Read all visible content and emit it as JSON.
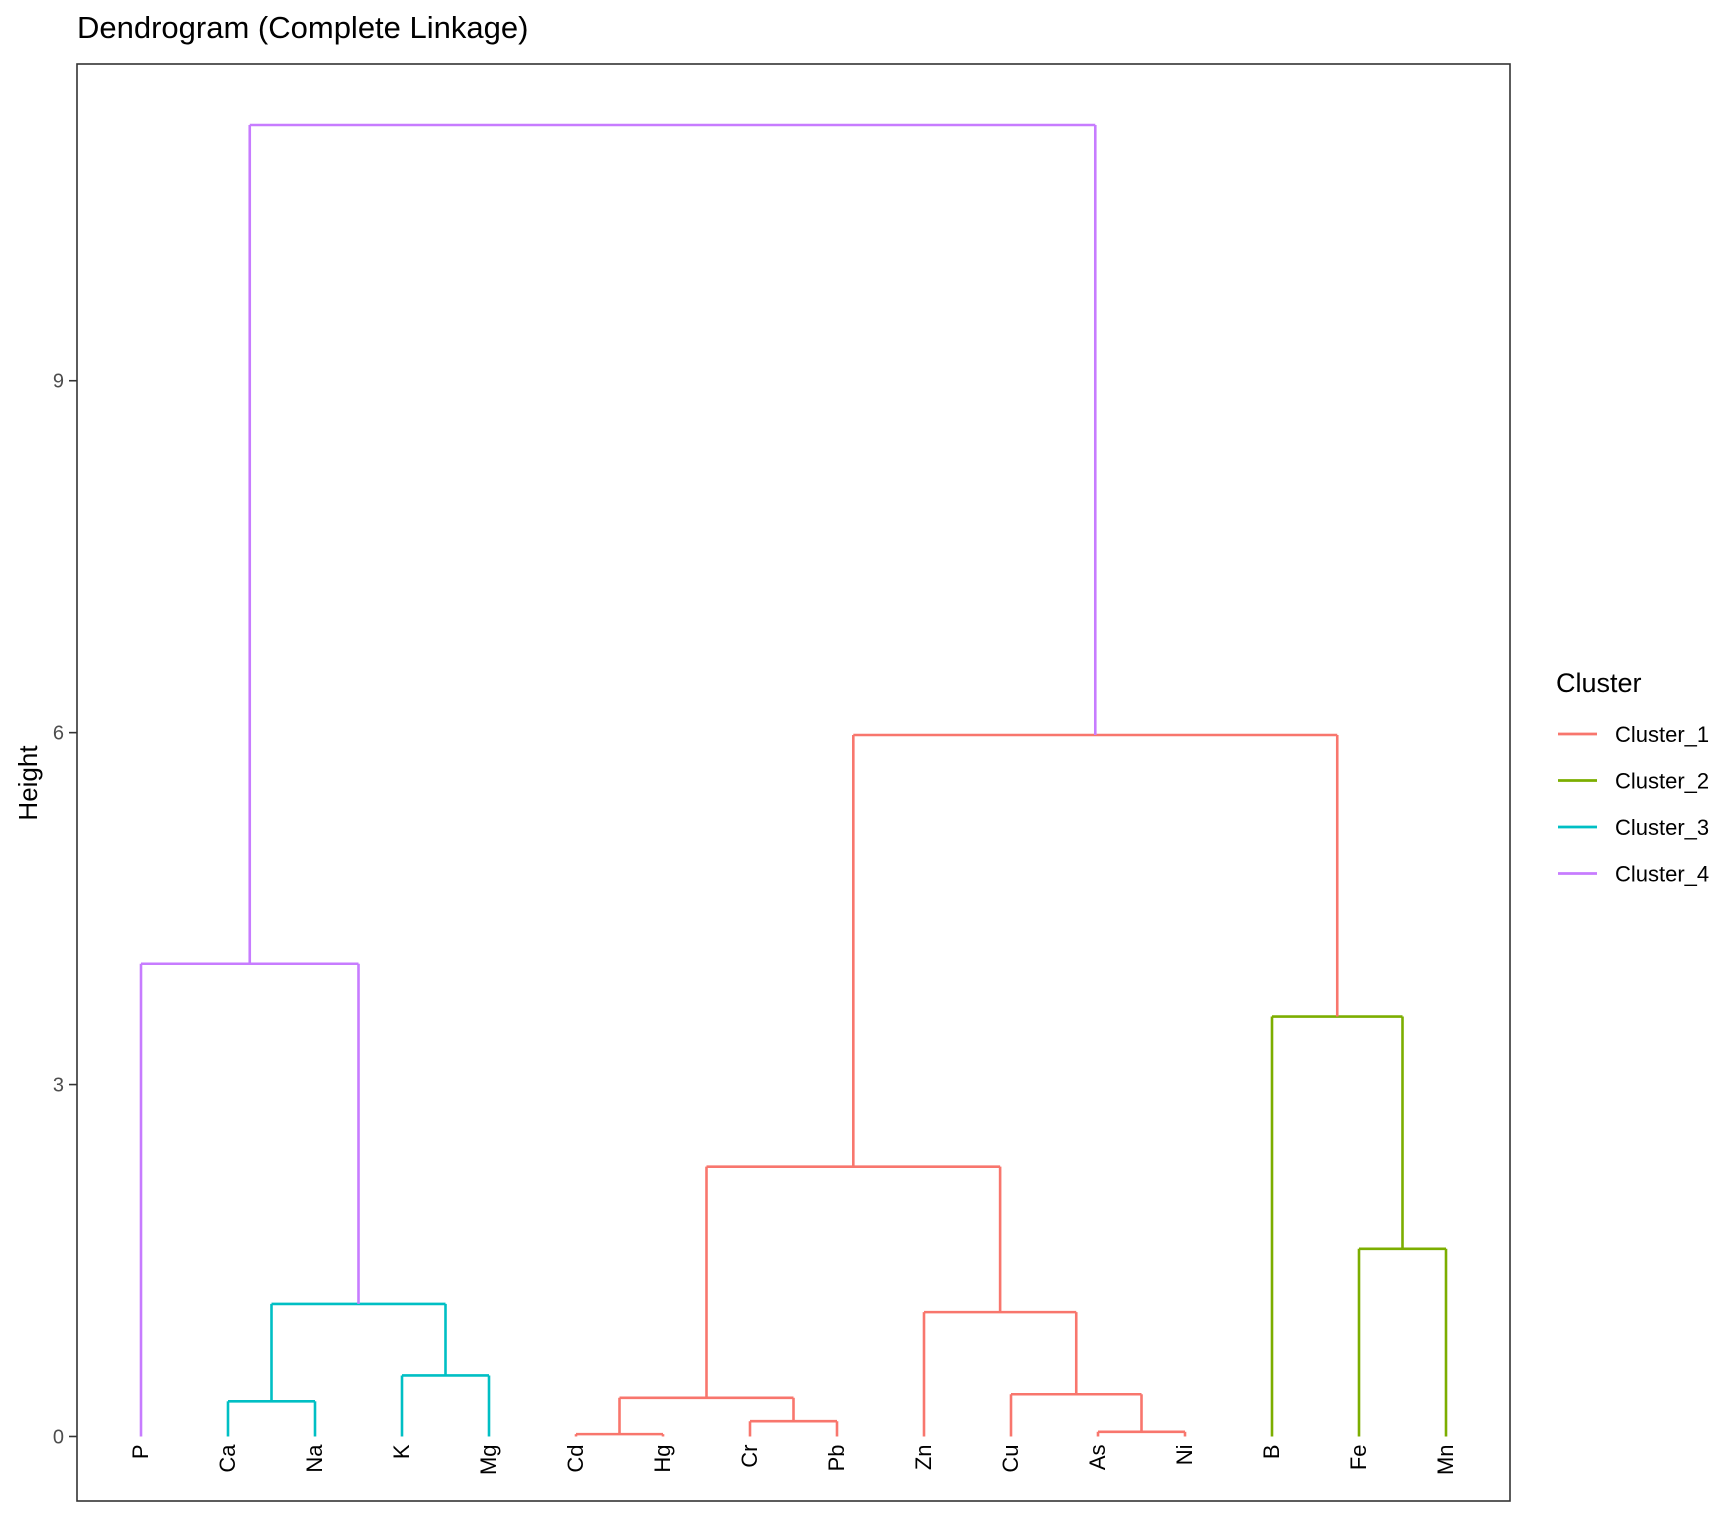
{
  "chart_data": {
    "type": "dendrogram",
    "title": "Dendrogram (Complete Linkage)",
    "xlabel": "",
    "ylabel": "Height",
    "ylim": [
      -0.55,
      11.7
    ],
    "yticks": [
      0,
      3,
      6,
      9
    ],
    "grid": false,
    "legend": {
      "title": "Cluster",
      "placement": "right",
      "entries": [
        {
          "name": "Cluster_1",
          "color": "#F8766D"
        },
        {
          "name": "Cluster_2",
          "color": "#7CAE00"
        },
        {
          "name": "Cluster_3",
          "color": "#00BFC4"
        },
        {
          "name": "Cluster_4",
          "color": "#C77CFF"
        }
      ]
    },
    "leaves": [
      "P",
      "Ca",
      "Na",
      "K",
      "Mg",
      "Cd",
      "Hg",
      "Cr",
      "Pb",
      "Zn",
      "Cu",
      "As",
      "Ni",
      "B",
      "Fe",
      "Mn"
    ],
    "merges": [
      {
        "left": "Cd",
        "right": "Hg",
        "height": 0.02,
        "cluster": "Cluster_1"
      },
      {
        "left": "As",
        "right": "Ni",
        "height": 0.04,
        "cluster": "Cluster_1"
      },
      {
        "left": "Cr",
        "right": "Pb",
        "height": 0.13,
        "cluster": "Cluster_1"
      },
      {
        "left": "Ca",
        "right": "Na",
        "height": 0.3,
        "cluster": "Cluster_3"
      },
      {
        "left": "Cd+Hg",
        "right": "Cr+Pb",
        "height": 0.33,
        "cluster": "Cluster_1"
      },
      {
        "left": "Cu",
        "right": "As+Ni",
        "height": 0.36,
        "cluster": "Cluster_1"
      },
      {
        "left": "K",
        "right": "Mg",
        "height": 0.52,
        "cluster": "Cluster_3"
      },
      {
        "left": "Zn",
        "right": "Cu+As+Ni",
        "height": 1.06,
        "cluster": "Cluster_1"
      },
      {
        "left": "Ca+Na",
        "right": "K+Mg",
        "height": 1.13,
        "cluster": "Cluster_3"
      },
      {
        "left": "Fe",
        "right": "Mn",
        "height": 1.6,
        "cluster": "Cluster_2"
      },
      {
        "left": "Cd+Hg+Cr+Pb",
        "right": "Zn+Cu+As+Ni",
        "height": 2.3,
        "cluster": "Cluster_1"
      },
      {
        "left": "B",
        "right": "Fe+Mn",
        "height": 3.58,
        "cluster": "Cluster_2"
      },
      {
        "left": "P",
        "right": "Ca+Na+K+Mg",
        "height": 4.03,
        "cluster": "Cluster_4"
      },
      {
        "left": "Cd..Ni",
        "right": "B+Fe+Mn",
        "height": 5.98,
        "cluster": "Cluster_1"
      },
      {
        "left": "P..Mg",
        "right": "Cd..Mn",
        "height": 11.18,
        "cluster": "Cluster_4"
      }
    ]
  }
}
